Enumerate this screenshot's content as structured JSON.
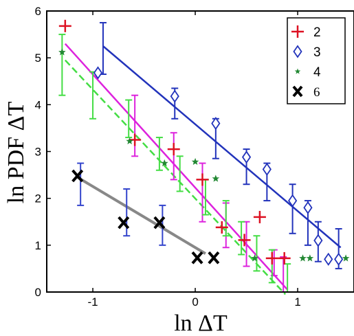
{
  "chart_data": {
    "type": "scatter",
    "xlabel": "ln ΔT",
    "ylabel": "ln PDF ΔT",
    "xlim": [
      -1.45,
      1.55
    ],
    "ylim": [
      0,
      6
    ],
    "xticks": [
      -1,
      0,
      1
    ],
    "xtick_labels": [
      "-1",
      "0",
      "1"
    ],
    "yticks": [
      0,
      1,
      2,
      3,
      4,
      5,
      6
    ],
    "ytick_labels": [
      "0",
      "1",
      "2",
      "3",
      "4",
      "5",
      "6"
    ],
    "grid": false,
    "legend_position": "top-right",
    "series": [
      {
        "name": "2",
        "marker": "plus",
        "color": "#dd1122",
        "fit_color": "#dd22dd",
        "fit_style": "solid",
        "points": [
          {
            "x": -1.27,
            "y": 5.68
          },
          {
            "x": -0.59,
            "y": 3.25
          },
          {
            "x": -0.21,
            "y": 3.05
          },
          {
            "x": 0.07,
            "y": 2.4
          },
          {
            "x": 0.26,
            "y": 1.38
          },
          {
            "x": 0.48,
            "y": 1.11
          },
          {
            "x": 0.63,
            "y": 1.6
          },
          {
            "x": 0.75,
            "y": 0.72
          },
          {
            "x": 0.87,
            "y": 0.72
          }
        ],
        "fit": [
          [
            -1.27,
            5.3
          ],
          [
            0.9,
            0.05
          ]
        ],
        "errors": [
          {
            "x": -0.59,
            "lo": 2.9,
            "hi": 4.2
          },
          {
            "x": -0.21,
            "lo": 2.4,
            "hi": 3.4
          },
          {
            "x": 0.07,
            "lo": 1.5,
            "hi": 2.75
          },
          {
            "x": 0.3,
            "lo": 0.95,
            "hi": 1.9
          },
          {
            "x": 0.5,
            "lo": 0.55,
            "hi": 1.5
          },
          {
            "x": 0.77,
            "lo": 0.35,
            "hi": 0.9
          },
          {
            "x": 0.86,
            "lo": 0.0,
            "hi": 0.75
          }
        ]
      },
      {
        "name": "3",
        "marker": "diamond",
        "color": "#2233bb",
        "fit_color": "#2233bb",
        "fit_style": "solid",
        "points": [
          {
            "x": -0.95,
            "y": 4.68
          },
          {
            "x": -0.2,
            "y": 4.18
          },
          {
            "x": 0.2,
            "y": 3.6
          },
          {
            "x": 0.5,
            "y": 2.88
          },
          {
            "x": 0.7,
            "y": 2.62
          },
          {
            "x": 0.95,
            "y": 1.95
          },
          {
            "x": 1.1,
            "y": 1.8
          },
          {
            "x": 1.2,
            "y": 1.1
          },
          {
            "x": 1.3,
            "y": 0.7
          },
          {
            "x": 1.4,
            "y": 0.7
          }
        ],
        "fit": [
          [
            -0.9,
            5.25
          ],
          [
            1.42,
            0.95
          ]
        ],
        "errors": [
          {
            "x": -0.9,
            "lo": 4.65,
            "hi": 5.75
          },
          {
            "x": -0.2,
            "lo": 3.7,
            "hi": 4.35
          },
          {
            "x": 0.2,
            "lo": 2.85,
            "hi": 3.7
          },
          {
            "x": 0.5,
            "lo": 2.3,
            "hi": 3.05
          },
          {
            "x": 0.7,
            "lo": 1.95,
            "hi": 2.75
          },
          {
            "x": 0.95,
            "lo": 1.25,
            "hi": 2.3
          },
          {
            "x": 1.1,
            "lo": 1.0,
            "hi": 1.95
          },
          {
            "x": 1.2,
            "lo": 0.65,
            "hi": 1.5
          },
          {
            "x": 1.4,
            "lo": 0.5,
            "hi": 1.35
          }
        ]
      },
      {
        "name": "4",
        "marker": "star",
        "color": "#228833",
        "fit_color": "#44dd44",
        "fit_style": "dashed",
        "points": [
          {
            "x": -1.3,
            "y": 5.12
          },
          {
            "x": -0.64,
            "y": 3.22
          },
          {
            "x": -0.3,
            "y": 2.75
          },
          {
            "x": 0.0,
            "y": 2.78
          },
          {
            "x": 0.2,
            "y": 2.42
          },
          {
            "x": 0.58,
            "y": 0.72
          },
          {
            "x": 1.05,
            "y": 0.72
          },
          {
            "x": 1.12,
            "y": 0.72
          },
          {
            "x": 1.47,
            "y": 0.72
          }
        ],
        "fit": [
          [
            -1.27,
            4.95
          ],
          [
            0.88,
            -0.05
          ]
        ],
        "errors": [
          {
            "x": -1.3,
            "lo": 4.2,
            "hi": 5.5
          },
          {
            "x": -1.0,
            "lo": 3.7,
            "hi": 4.7
          },
          {
            "x": -0.65,
            "lo": 3.3,
            "hi": 4.1
          },
          {
            "x": -0.35,
            "lo": 2.6,
            "hi": 3.3
          },
          {
            "x": -0.15,
            "lo": 2.15,
            "hi": 2.9
          },
          {
            "x": 0.1,
            "lo": 1.65,
            "hi": 2.4
          },
          {
            "x": 0.3,
            "lo": 1.2,
            "hi": 1.95
          },
          {
            "x": 0.45,
            "lo": 0.8,
            "hi": 1.5
          },
          {
            "x": 0.6,
            "lo": 0.45,
            "hi": 1.2
          },
          {
            "x": 0.75,
            "lo": 0.2,
            "hi": 0.9
          },
          {
            "x": 0.9,
            "lo": 0.0,
            "hi": 0.6
          }
        ]
      },
      {
        "name": "6",
        "marker": "x",
        "color": "#000000",
        "fit_color": "#888888",
        "fit_style": "solid",
        "points": [
          {
            "x": -1.15,
            "y": 2.48
          },
          {
            "x": -0.7,
            "y": 1.48
          },
          {
            "x": -0.35,
            "y": 1.48
          },
          {
            "x": 0.02,
            "y": 0.73
          },
          {
            "x": 0.18,
            "y": 0.73
          }
        ],
        "fit": [
          [
            -1.15,
            2.45
          ],
          [
            0.1,
            0.82
          ]
        ],
        "errors": [
          {
            "x": -1.12,
            "lo": 1.85,
            "hi": 2.75
          },
          {
            "x": -0.67,
            "lo": 1.2,
            "hi": 2.2
          },
          {
            "x": -0.32,
            "lo": 1.0,
            "hi": 1.85
          }
        ]
      }
    ]
  }
}
